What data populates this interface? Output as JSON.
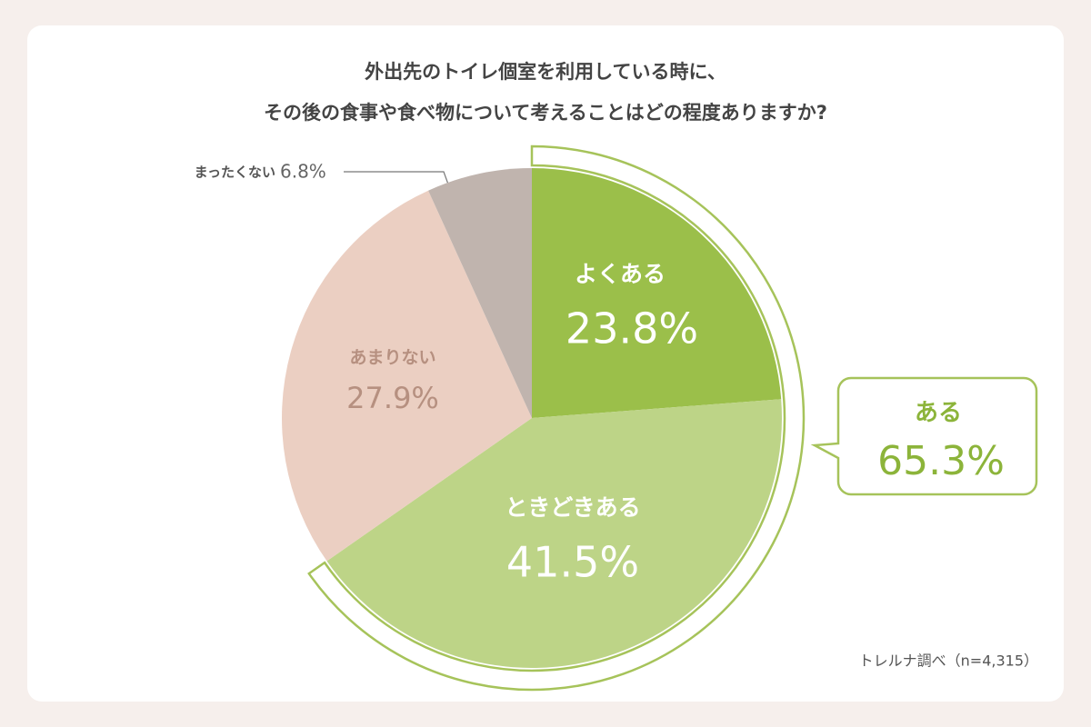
{
  "chart_data": {
    "type": "pie",
    "title": [
      "外出先のトイレ個室を利用している時に、",
      "その後の食事や食べ物について考えることはどの程度ありますか?"
    ],
    "categories": [
      "よくある",
      "ときどきある",
      "あまりない",
      "まったくない"
    ],
    "values": [
      23.8,
      41.5,
      27.9,
      6.8
    ],
    "value_labels": [
      "23.8%",
      "41.5%",
      "27.9%",
      "6.8%"
    ],
    "colors": [
      "#9bbf4a",
      "#bdd487",
      "#ebcfc2",
      "#c0b4ae"
    ],
    "annotation": {
      "label": "ある",
      "value": 65.3,
      "value_label": "65.3%"
    },
    "source": "トレルナ調べ（n=4,315）"
  }
}
